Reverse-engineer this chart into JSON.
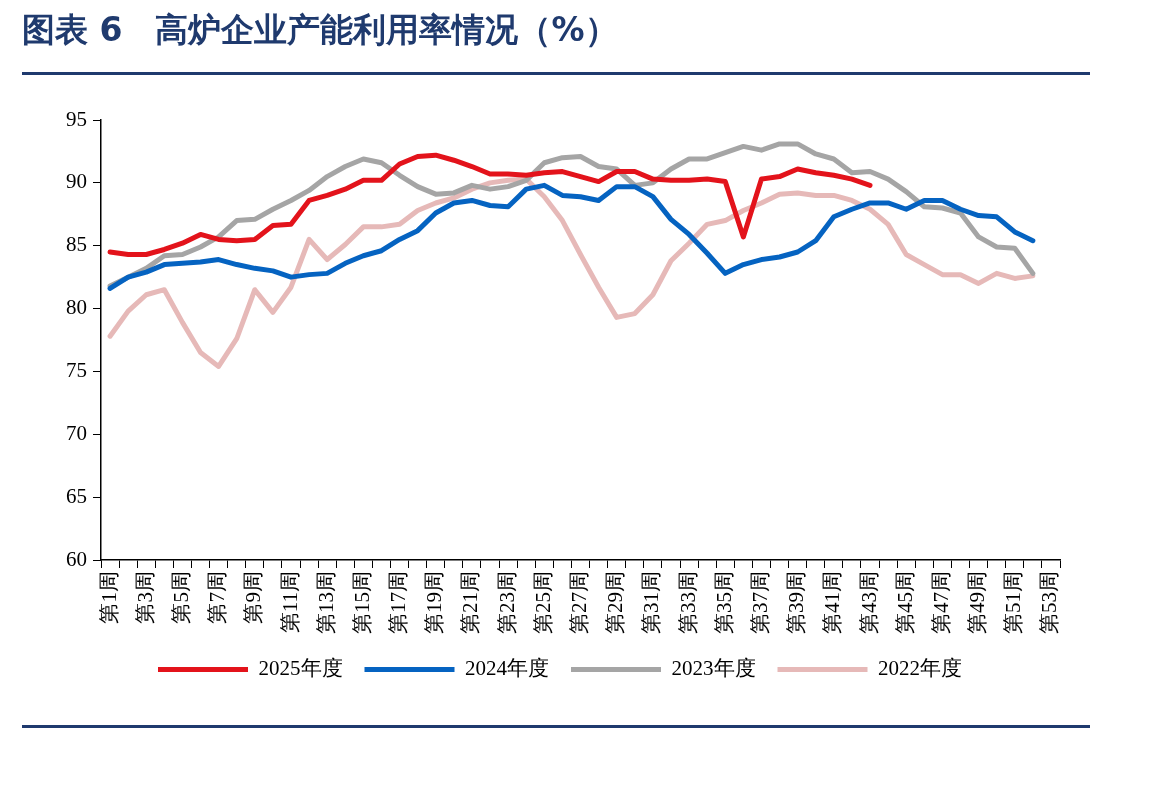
{
  "chart_data": {
    "type": "line",
    "title": "图表 6　高炉企业产能利用率情况（%）",
    "categories": [
      "第1周",
      null,
      "第3周",
      null,
      "第5周",
      null,
      "第7周",
      null,
      "第9周",
      null,
      "第11周",
      null,
      "第13周",
      null,
      "第15周",
      null,
      "第17周",
      null,
      "第19周",
      null,
      "第21周",
      null,
      "第23周",
      null,
      "第25周",
      null,
      "第27周",
      null,
      "第29周",
      null,
      "第31周",
      null,
      "第33周",
      null,
      "第35周",
      null,
      "第37周",
      null,
      "第39周",
      null,
      "第41周",
      null,
      "第43周",
      null,
      "第45周",
      null,
      "第47周",
      null,
      "第49周",
      null,
      "第51周",
      null,
      "第53周"
    ],
    "series": [
      {
        "name": "2025年度",
        "color": "#e3131b",
        "values": [
          84.5,
          84.3,
          84.3,
          84.7,
          85.2,
          85.9,
          85.5,
          85.4,
          85.5,
          86.6,
          86.7,
          88.6,
          89.0,
          89.5,
          90.2,
          90.2,
          91.5,
          92.1,
          92.2,
          91.8,
          91.3,
          90.7,
          90.7,
          90.6,
          90.8,
          90.9,
          90.5,
          90.1,
          90.9,
          90.9,
          90.3,
          90.2,
          90.2,
          90.3,
          90.1,
          85.7,
          90.3,
          90.5,
          91.1,
          90.8,
          90.6,
          90.3,
          89.8,
          null,
          null,
          null,
          null,
          null,
          null,
          null,
          null,
          null,
          null
        ]
      },
      {
        "name": "2024年度",
        "color": "#0563c1",
        "values": [
          81.6,
          82.5,
          82.9,
          83.5,
          83.6,
          83.7,
          83.9,
          83.5,
          83.2,
          83.0,
          82.5,
          82.7,
          82.8,
          83.6,
          84.2,
          84.6,
          85.5,
          86.2,
          87.6,
          88.4,
          88.6,
          88.2,
          88.1,
          89.5,
          89.8,
          89.0,
          88.9,
          88.6,
          89.7,
          89.7,
          88.9,
          87.1,
          85.9,
          84.4,
          82.8,
          83.5,
          83.9,
          84.1,
          84.5,
          85.4,
          87.3,
          87.9,
          88.4,
          88.4,
          87.9,
          88.6,
          88.6,
          87.9,
          87.4,
          87.3,
          86.1,
          85.4,
          null
        ]
      },
      {
        "name": "2023年度",
        "color": "#a5a5a5",
        "values": [
          81.8,
          82.5,
          83.2,
          84.2,
          84.3,
          84.9,
          85.7,
          87.0,
          87.1,
          87.9,
          88.6,
          89.4,
          90.5,
          91.3,
          91.9,
          91.6,
          90.6,
          89.7,
          89.1,
          89.2,
          89.8,
          89.5,
          89.7,
          90.2,
          91.6,
          92.0,
          92.1,
          91.3,
          91.1,
          89.8,
          90.0,
          91.1,
          91.9,
          91.9,
          92.4,
          92.9,
          92.6,
          93.1,
          93.1,
          92.3,
          91.9,
          90.8,
          90.9,
          90.3,
          89.3,
          88.1,
          88.0,
          87.6,
          85.7,
          84.9,
          84.8,
          82.8,
          null
        ]
      },
      {
        "name": "2022年度",
        "color": "#e6b9b8",
        "values": [
          77.8,
          79.8,
          81.1,
          81.5,
          78.9,
          76.5,
          75.4,
          77.6,
          81.5,
          79.7,
          81.7,
          85.5,
          83.9,
          85.1,
          86.5,
          86.5,
          86.7,
          87.8,
          88.4,
          88.8,
          89.5,
          90.0,
          90.2,
          90.3,
          88.9,
          87.0,
          84.3,
          81.7,
          79.3,
          79.6,
          81.1,
          83.8,
          85.2,
          86.7,
          87.0,
          87.8,
          88.4,
          89.1,
          89.2,
          89.0,
          89.0,
          88.6,
          87.9,
          86.7,
          84.3,
          83.5,
          82.7,
          82.7,
          82.0,
          82.8,
          82.4,
          82.6,
          null
        ]
      }
    ],
    "ylim": [
      60,
      95
    ],
    "yticks": [
      60,
      65,
      70,
      75,
      80,
      85,
      90,
      95
    ],
    "grid": false,
    "legend": "bottom",
    "marker": "none",
    "line_style": "solid"
  }
}
